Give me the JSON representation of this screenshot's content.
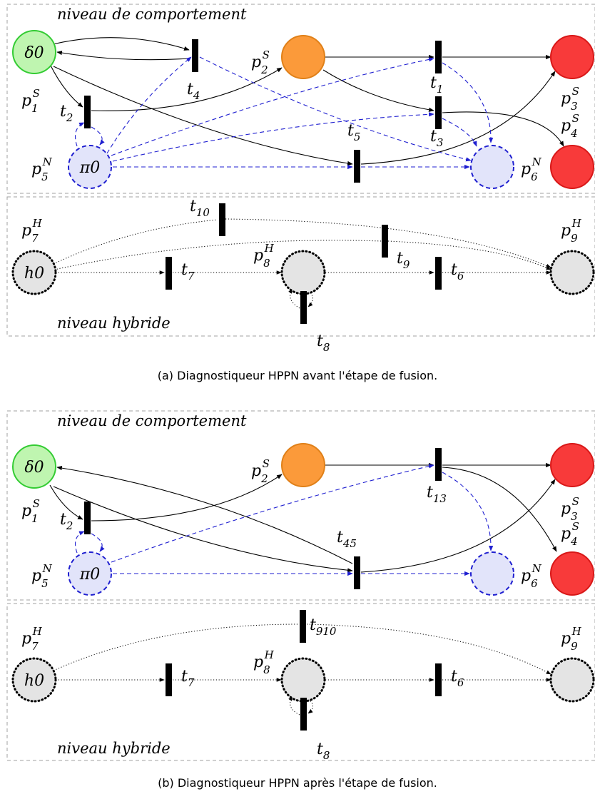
{
  "figure_a": {
    "level_behaviour": "niveau de comportement",
    "level_hybrid": "niveau hybride",
    "caption_tag": "(a)",
    "caption": "Diagnostiqueur HPPN avant l'étape de fusion.",
    "places": {
      "p1S": {
        "token": "δ0",
        "label_base": "p",
        "label_sub": "1",
        "label_sup": "S"
      },
      "p2S": {
        "label_base": "p",
        "label_sub": "2",
        "label_sup": "S"
      },
      "p3S": {
        "label_base": "p",
        "label_sub": "3",
        "label_sup": "S"
      },
      "p4S": {
        "label_base": "p",
        "label_sub": "4",
        "label_sup": "S"
      },
      "p5N": {
        "token": "π0",
        "label_base": "p",
        "label_sub": "5",
        "label_sup": "N"
      },
      "p6N": {
        "label_base": "p",
        "label_sub": "6",
        "label_sup": "N"
      },
      "p7H": {
        "token": "h0",
        "label_base": "p",
        "label_sub": "7",
        "label_sup": "H"
      },
      "p8H": {
        "label_base": "p",
        "label_sub": "8",
        "label_sup": "H"
      },
      "p9H": {
        "label_base": "p",
        "label_sub": "9",
        "label_sup": "H"
      }
    },
    "transitions": {
      "t1": {
        "base": "t",
        "sub": "1"
      },
      "t2": {
        "base": "t",
        "sub": "2"
      },
      "t3": {
        "base": "t",
        "sub": "3"
      },
      "t4": {
        "base": "t",
        "sub": "4"
      },
      "t5": {
        "base": "t",
        "sub": "5"
      },
      "t6": {
        "base": "t",
        "sub": "6"
      },
      "t7": {
        "base": "t",
        "sub": "7"
      },
      "t8": {
        "base": "t",
        "sub": "8"
      },
      "t9": {
        "base": "t",
        "sub": "9"
      },
      "t10": {
        "base": "t",
        "sub": "10"
      }
    }
  },
  "figure_b": {
    "level_behaviour": "niveau de comportement",
    "level_hybrid": "niveau hybride",
    "caption_tag": "(b)",
    "caption": "Diagnostiqueur HPPN après l'étape de fusion.",
    "places": {
      "p1S": {
        "token": "δ0",
        "label_base": "p",
        "label_sub": "1",
        "label_sup": "S"
      },
      "p2S": {
        "label_base": "p",
        "label_sub": "2",
        "label_sup": "S"
      },
      "p3S": {
        "label_base": "p",
        "label_sub": "3",
        "label_sup": "S"
      },
      "p4S": {
        "label_base": "p",
        "label_sub": "4",
        "label_sup": "S"
      },
      "p5N": {
        "token": "π0",
        "label_base": "p",
        "label_sub": "5",
        "label_sup": "N"
      },
      "p6N": {
        "label_base": "p",
        "label_sub": "6",
        "label_sup": "N"
      },
      "p7H": {
        "token": "h0",
        "label_base": "p",
        "label_sub": "7",
        "label_sup": "H"
      },
      "p8H": {
        "label_base": "p",
        "label_sub": "8",
        "label_sup": "H"
      },
      "p9H": {
        "label_base": "p",
        "label_sub": "9",
        "label_sup": "H"
      }
    },
    "transitions": {
      "t2": {
        "base": "t",
        "sub": "2"
      },
      "t6": {
        "base": "t",
        "sub": "6"
      },
      "t7": {
        "base": "t",
        "sub": "7"
      },
      "t8": {
        "base": "t",
        "sub": "8"
      },
      "t13": {
        "base": "t",
        "sub": "13"
      },
      "t45": {
        "base": "t",
        "sub": "45"
      },
      "t910": {
        "base": "t",
        "sub": "910"
      }
    }
  },
  "colors": {
    "place_green_fill": "#bff5b0",
    "place_green_stroke": "#33cc33",
    "place_orange_fill": "#fb9a3a",
    "place_orange_stroke": "#e08018",
    "place_red_fill": "#f83a3a",
    "place_red_stroke": "#d81818",
    "place_blue_fill": "#e2e4fa",
    "place_blue_stroke": "#1f1fd0",
    "place_grey_fill": "#e4e4e4",
    "arc_normal": "#000000",
    "arc_observation": "#1f1fd0"
  }
}
